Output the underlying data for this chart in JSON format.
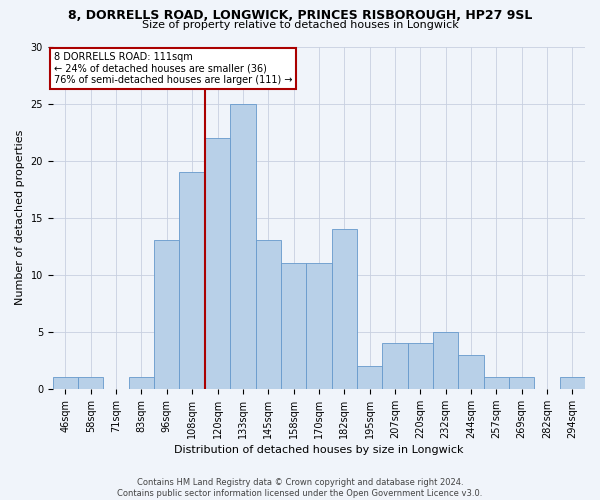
{
  "title_line1": "8, DORRELLS ROAD, LONGWICK, PRINCES RISBOROUGH, HP27 9SL",
  "title_line2": "Size of property relative to detached houses in Longwick",
  "xlabel": "Distribution of detached houses by size in Longwick",
  "ylabel": "Number of detached properties",
  "footer_line1": "Contains HM Land Registry data © Crown copyright and database right 2024.",
  "footer_line2": "Contains public sector information licensed under the Open Government Licence v3.0.",
  "bin_labels": [
    "46sqm",
    "58sqm",
    "71sqm",
    "83sqm",
    "96sqm",
    "108sqm",
    "120sqm",
    "133sqm",
    "145sqm",
    "158sqm",
    "170sqm",
    "182sqm",
    "195sqm",
    "207sqm",
    "220sqm",
    "232sqm",
    "244sqm",
    "257sqm",
    "269sqm",
    "282sqm",
    "294sqm"
  ],
  "bar_heights": [
    1,
    1,
    0,
    1,
    13,
    19,
    22,
    25,
    13,
    11,
    11,
    14,
    2,
    4,
    4,
    5,
    3,
    1,
    1,
    0,
    1
  ],
  "bar_color": "#b8d0e8",
  "bar_edge_color": "#6699cc",
  "highlight_label": "8 DORRELLS ROAD: 111sqm",
  "highlight_pct_smaller": "24% of detached houses are smaller (36)",
  "highlight_pct_larger": "76% of semi-detached houses are larger (111)",
  "annotation_box_color": "#aa0000",
  "vline_color": "#aa0000",
  "vline_index": 5.25,
  "ylim": [
    0,
    30
  ],
  "yticks": [
    0,
    5,
    10,
    15,
    20,
    25,
    30
  ],
  "background_color": "#f0f4fa",
  "grid_color": "#c8d0e0",
  "title_fontsize": 9,
  "subtitle_fontsize": 8,
  "ylabel_fontsize": 8,
  "xlabel_fontsize": 8,
  "tick_fontsize": 7,
  "annotation_fontsize": 7,
  "footer_fontsize": 6
}
